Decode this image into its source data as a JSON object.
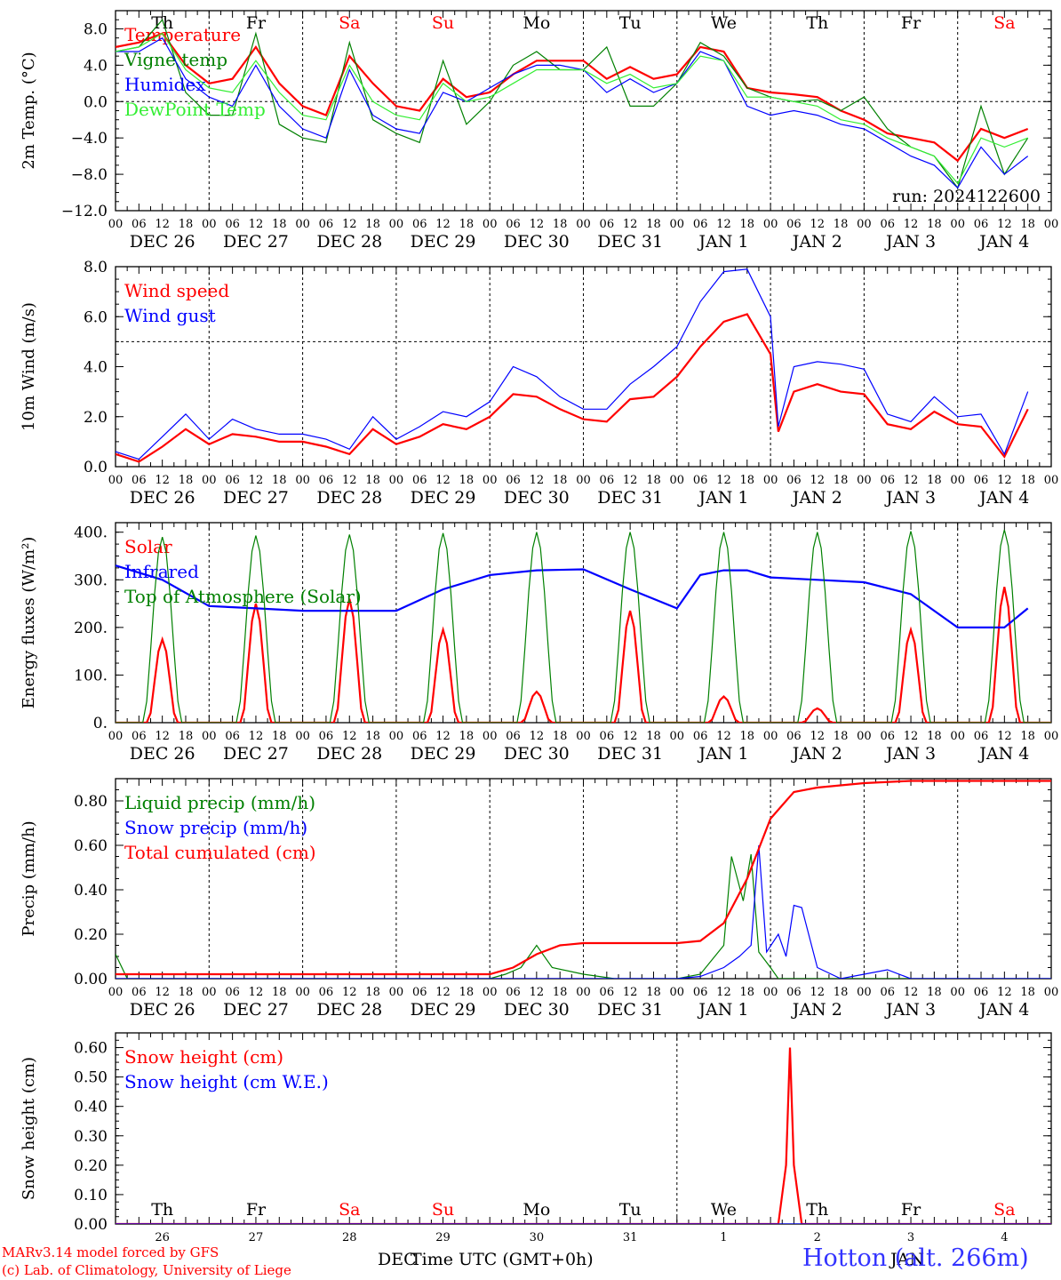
{
  "days": [
    "Th",
    "Fr",
    "Sa",
    "Su",
    "Mo",
    "Tu",
    "We",
    "Th",
    "Fr",
    "Sa"
  ],
  "weekend_days": [
    "Sa",
    "Su"
  ],
  "date_labels": [
    "DEC 26",
    "DEC 27",
    "DEC 28",
    "DEC 29",
    "DEC 30",
    "DEC 31",
    "JAN  1",
    "JAN  2",
    "JAN  3",
    "JAN  4"
  ],
  "hour_ticks": [
    "00",
    "06",
    "12",
    "18"
  ],
  "hour_end": "00",
  "colors": {
    "red": "#ff0000",
    "green": "#008000",
    "blue": "#0000ff",
    "lightgreen": "#33ee33",
    "grid": "#000000",
    "weekend": "#ff0000"
  },
  "footer": {
    "model": "MARv3.14 model forced by GFS",
    "lab": "(c) Lab. of Climatology, University of Liege",
    "time_axis": "Time UTC (GMT+0h)",
    "month_left": "DEC",
    "month_right": "JAN",
    "station": "Hotton (alt. 266m)"
  },
  "chart_data": [
    {
      "type": "line",
      "ylabel": "2m Temp. (°C)",
      "ylim": [
        -12,
        10
      ],
      "yticks": [
        8,
        4,
        0,
        -4,
        -8,
        -12
      ],
      "ytick_labels": [
        "8.0",
        "4.0",
        "0.0",
        "−4.0",
        "−8.0",
        "−12.0"
      ],
      "ref_line": 0,
      "annotation": "run: 2024122600",
      "x_unit": "hours since 2024-12-26 00 UTC",
      "series": [
        {
          "name": "Temperature",
          "color": "red",
          "x": [
            0,
            6,
            12,
            18,
            24,
            30,
            36,
            42,
            48,
            54,
            60,
            66,
            72,
            78,
            84,
            90,
            96,
            102,
            108,
            114,
            120,
            126,
            132,
            138,
            144,
            150,
            156,
            162,
            168,
            174,
            180,
            186,
            192,
            198,
            204,
            210,
            216,
            222,
            228,
            234
          ],
          "values": [
            6,
            6.5,
            7.5,
            4,
            2,
            2.5,
            6,
            2,
            -0.5,
            -1.5,
            5,
            2,
            -0.5,
            -1,
            2.5,
            0.5,
            1,
            3,
            4.5,
            4.5,
            4.5,
            2.5,
            3.8,
            2.5,
            3,
            6,
            5.5,
            1.5,
            1,
            0.8,
            0.5,
            -1,
            -2,
            -3.5,
            -4,
            -4.5,
            -6.5,
            -3,
            -4,
            -3
          ]
        },
        {
          "name": "Vigne temp",
          "color": "green",
          "x": [
            0,
            6,
            12,
            18,
            24,
            30,
            36,
            42,
            48,
            54,
            60,
            66,
            72,
            78,
            84,
            90,
            96,
            102,
            108,
            114,
            120,
            126,
            132,
            138,
            144,
            150,
            156,
            162,
            168,
            174,
            180,
            186,
            192,
            198,
            204,
            210,
            216,
            222,
            228,
            234
          ],
          "values": [
            5.5,
            6,
            9,
            1,
            -1.5,
            -1.5,
            7.5,
            -2.5,
            -4,
            -4.5,
            6.5,
            -2,
            -3.5,
            -4.5,
            4.5,
            -2.5,
            0,
            4,
            5.5,
            3.5,
            3.5,
            6,
            -0.5,
            -0.5,
            2,
            6.5,
            5,
            1.5,
            0.5,
            0,
            0.2,
            -1,
            0.5,
            -3,
            -5,
            -6,
            -9.5,
            -0.5,
            -8,
            -4
          ]
        },
        {
          "name": "Humidex",
          "color": "blue",
          "x": [
            0,
            6,
            12,
            18,
            24,
            30,
            36,
            42,
            48,
            54,
            60,
            66,
            72,
            78,
            84,
            90,
            96,
            102,
            108,
            114,
            120,
            126,
            132,
            138,
            144,
            150,
            156,
            162,
            168,
            174,
            180,
            186,
            192,
            198,
            204,
            210,
            216,
            222,
            228,
            234
          ],
          "values": [
            5.5,
            5.5,
            7,
            2.5,
            0.5,
            -0.5,
            4,
            -0.5,
            -3,
            -4,
            3.5,
            -1.5,
            -3,
            -3.5,
            1,
            0,
            1.5,
            3,
            4,
            4,
            3.5,
            1,
            2.5,
            1,
            2,
            5.5,
            4.5,
            -0.5,
            -1.5,
            -1,
            -1.5,
            -2.5,
            -3,
            -4.5,
            -6,
            -7,
            -9.5,
            -5,
            -8,
            -6
          ]
        },
        {
          "name": "DewPoint Temp",
          "color": "lightgreen",
          "x": [
            0,
            6,
            12,
            18,
            24,
            30,
            36,
            42,
            48,
            54,
            60,
            66,
            72,
            78,
            84,
            90,
            96,
            102,
            108,
            114,
            120,
            126,
            132,
            138,
            144,
            150,
            156,
            162,
            168,
            174,
            180,
            186,
            192,
            198,
            204,
            210,
            216,
            222,
            228,
            234
          ],
          "values": [
            5.5,
            6,
            7.5,
            3.5,
            1.5,
            1,
            4.5,
            1,
            -1.5,
            -2,
            4,
            0,
            -1.5,
            -2,
            2,
            0,
            0.5,
            2,
            3.5,
            3.5,
            3.5,
            2,
            3,
            1.5,
            2,
            5,
            4.5,
            0.5,
            0.5,
            0,
            -0.5,
            -2,
            -2.5,
            -4,
            -5,
            -6,
            -9,
            -4,
            -5,
            -4
          ]
        }
      ]
    },
    {
      "type": "line",
      "ylabel": "10m Wind (m/s)",
      "ylim": [
        0,
        8
      ],
      "yticks": [
        0,
        2,
        4,
        6,
        8
      ],
      "ytick_labels": [
        "0.0",
        "2.0",
        "4.0",
        "6.0",
        "8.0"
      ],
      "ref_line": 5,
      "x_unit": "hours since 2024-12-26 00 UTC",
      "series": [
        {
          "name": "Wind speed",
          "color": "red",
          "x": [
            0,
            6,
            12,
            18,
            24,
            30,
            36,
            42,
            48,
            54,
            60,
            66,
            72,
            78,
            84,
            90,
            96,
            102,
            108,
            114,
            120,
            126,
            132,
            138,
            144,
            150,
            156,
            162,
            168,
            170,
            174,
            180,
            186,
            192,
            198,
            204,
            210,
            216,
            222,
            228,
            234
          ],
          "values": [
            0.5,
            0.2,
            0.8,
            1.5,
            0.9,
            1.3,
            1.2,
            1.0,
            1.0,
            0.8,
            0.5,
            1.5,
            0.9,
            1.2,
            1.7,
            1.5,
            2.0,
            2.9,
            2.8,
            2.3,
            1.9,
            1.8,
            2.7,
            2.8,
            3.6,
            4.8,
            5.8,
            6.1,
            4.5,
            1.4,
            3.0,
            3.3,
            3.0,
            2.9,
            1.7,
            1.5,
            2.2,
            1.7,
            1.6,
            0.4,
            2.3
          ]
        },
        {
          "name": "Wind gust",
          "color": "blue",
          "x": [
            0,
            6,
            12,
            18,
            24,
            30,
            36,
            42,
            48,
            54,
            60,
            66,
            72,
            78,
            84,
            90,
            96,
            102,
            108,
            114,
            120,
            126,
            132,
            138,
            144,
            150,
            156,
            162,
            168,
            170,
            174,
            180,
            186,
            192,
            198,
            204,
            210,
            216,
            222,
            228,
            234
          ],
          "values": [
            0.6,
            0.3,
            1.2,
            2.1,
            1.1,
            1.9,
            1.5,
            1.3,
            1.3,
            1.1,
            0.7,
            2.0,
            1.1,
            1.6,
            2.2,
            2.0,
            2.6,
            4.0,
            3.6,
            2.8,
            2.3,
            2.3,
            3.3,
            4.0,
            4.8,
            6.6,
            7.8,
            7.9,
            6.0,
            1.6,
            4.0,
            4.2,
            4.1,
            3.9,
            2.1,
            1.8,
            2.8,
            2.0,
            2.1,
            0.5,
            3.0
          ]
        }
      ]
    },
    {
      "type": "line",
      "ylabel": "Energy fluxes (W/m²)",
      "ylim": [
        0,
        420
      ],
      "yticks": [
        0,
        100,
        200,
        300,
        400
      ],
      "ytick_labels": [
        "0.",
        "100.",
        "200.",
        "300.",
        "400."
      ],
      "x_unit": "hours since 2024-12-26 00 UTC",
      "daily_peaks": {
        "Solar": [
          175,
          250,
          260,
          195,
          65,
          235,
          55,
          30,
          195,
          285
        ],
        "Top of Atmosphere (Solar)": [
          390,
          393,
          395,
          398,
          400,
          400,
          400,
          400,
          402,
          405
        ]
      },
      "series": [
        {
          "name": "Solar",
          "color": "red"
        },
        {
          "name": "Infrared",
          "color": "blue",
          "x": [
            0,
            12,
            24,
            36,
            48,
            60,
            72,
            84,
            96,
            108,
            120,
            132,
            144,
            150,
            156,
            162,
            168,
            180,
            192,
            204,
            216,
            228,
            234
          ],
          "values": [
            330,
            300,
            245,
            240,
            235,
            235,
            235,
            280,
            310,
            320,
            322,
            280,
            240,
            310,
            320,
            320,
            305,
            300,
            295,
            270,
            200,
            200,
            240
          ]
        },
        {
          "name": "Top of Atmosphere (Solar)",
          "color": "green"
        }
      ]
    },
    {
      "type": "line",
      "ylabel": "Precip (mm/h)",
      "ylim": [
        0,
        0.9
      ],
      "yticks": [
        0,
        0.2,
        0.4,
        0.6,
        0.8
      ],
      "ytick_labels": [
        "0.00",
        "0.20",
        "0.40",
        "0.60",
        "0.80"
      ],
      "x_unit": "hours since 2024-12-26 00 UTC",
      "series": [
        {
          "name": "Liquid precip (mm/h)",
          "color": "green",
          "x": [
            0,
            3,
            6,
            96,
            100,
            104,
            108,
            112,
            120,
            128,
            136,
            144,
            150,
            156,
            158,
            161,
            163,
            165,
            168,
            170,
            176,
            240
          ],
          "values": [
            0.11,
            0,
            0,
            0,
            0.02,
            0.05,
            0.15,
            0.05,
            0.02,
            0,
            0,
            0,
            0.02,
            0.15,
            0.55,
            0.35,
            0.56,
            0.12,
            0.05,
            0,
            0,
            0
          ]
        },
        {
          "name": "Snow precip (mm/h)",
          "color": "blue",
          "x": [
            0,
            144,
            150,
            156,
            160,
            163,
            165,
            167,
            170,
            172,
            174,
            176,
            180,
            186,
            192,
            198,
            204,
            240
          ],
          "values": [
            0,
            0,
            0.01,
            0.05,
            0.1,
            0.15,
            0.6,
            0.12,
            0.2,
            0.1,
            0.33,
            0.32,
            0.05,
            0,
            0.02,
            0.04,
            0,
            0
          ]
        },
        {
          "name": "Total cumulated (cm)",
          "color": "red",
          "x": [
            0,
            96,
            102,
            108,
            114,
            120,
            144,
            150,
            156,
            162,
            168,
            172,
            174,
            180,
            192,
            204,
            216,
            228,
            240
          ],
          "values": [
            0.02,
            0.02,
            0.05,
            0.11,
            0.15,
            0.16,
            0.16,
            0.17,
            0.25,
            0.45,
            0.72,
            0.8,
            0.84,
            0.86,
            0.88,
            0.89,
            0.89,
            0.89,
            0.89
          ]
        }
      ]
    },
    {
      "type": "line",
      "ylabel": "Snow height (cm)",
      "ylim": [
        0,
        0.65
      ],
      "yticks": [
        0,
        0.1,
        0.2,
        0.3,
        0.4,
        0.5,
        0.6
      ],
      "ytick_labels": [
        "0.00",
        "0.10",
        "0.20",
        "0.30",
        "0.40",
        "0.50",
        "0.60"
      ],
      "x_unit": "hours since 2024-12-26 00 UTC",
      "day_numbers": [
        "26",
        "27",
        "28",
        "29",
        "30",
        "31",
        "1",
        "2",
        "3",
        "4"
      ],
      "series": [
        {
          "name": "Snow height (cm)",
          "color": "red",
          "x": [
            0,
            170,
            172,
            173,
            174,
            176,
            240
          ],
          "values": [
            0,
            0,
            0.2,
            0.6,
            0.2,
            0,
            0
          ]
        },
        {
          "name": "Snow height (cm W.E.)",
          "color": "blue",
          "x": [
            0,
            240
          ],
          "values": [
            0,
            0
          ]
        }
      ]
    }
  ]
}
